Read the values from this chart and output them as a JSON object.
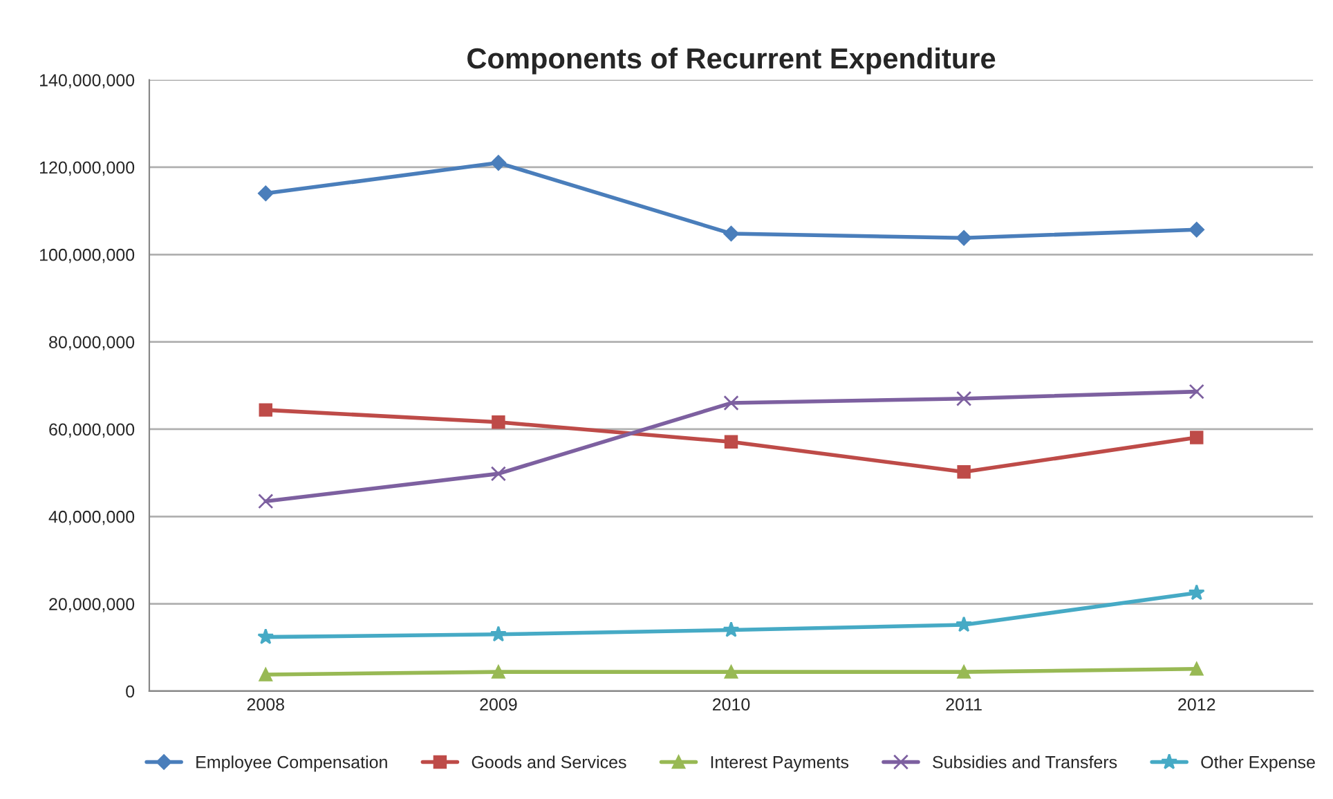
{
  "chart_data": {
    "type": "line",
    "title": "Components of Recurrent Expenditure",
    "categories": [
      "2008",
      "2009",
      "2010",
      "2011",
      "2012"
    ],
    "series": [
      {
        "name": "Employee Compensation",
        "color": "#4a7ebb",
        "marker": "diamond",
        "values": [
          114000000,
          121000000,
          104800000,
          103800000,
          105700000
        ]
      },
      {
        "name": "Goods and Services",
        "color": "#be4b48",
        "marker": "square",
        "values": [
          64400000,
          61600000,
          57100000,
          50200000,
          58100000
        ]
      },
      {
        "name": "Interest Payments",
        "color": "#98b954",
        "marker": "triangle",
        "values": [
          3800000,
          4400000,
          4400000,
          4400000,
          5100000
        ]
      },
      {
        "name": "Subsidies and Transfers",
        "color": "#7d60a0",
        "marker": "cross",
        "values": [
          43500000,
          49800000,
          66000000,
          67000000,
          68600000
        ]
      },
      {
        "name": "Other Expense",
        "color": "#46aac5",
        "marker": "star",
        "values": [
          12400000,
          13000000,
          14000000,
          15200000,
          22500000
        ]
      }
    ],
    "ylim": [
      0,
      140000000
    ],
    "yticks": [
      {
        "value": 0,
        "label": "0"
      },
      {
        "value": 20000000,
        "label": "20,000,000"
      },
      {
        "value": 40000000,
        "label": "40,000,000"
      },
      {
        "value": 60000000,
        "label": "60,000,000"
      },
      {
        "value": 80000000,
        "label": "80,000,000"
      },
      {
        "value": 100000000,
        "label": "100,000,000"
      },
      {
        "value": 120000000,
        "label": "120,000,000"
      },
      {
        "value": 140000000,
        "label": "140,000,000"
      }
    ],
    "grid": "y",
    "legend": "bottom",
    "line_style": "solid"
  }
}
